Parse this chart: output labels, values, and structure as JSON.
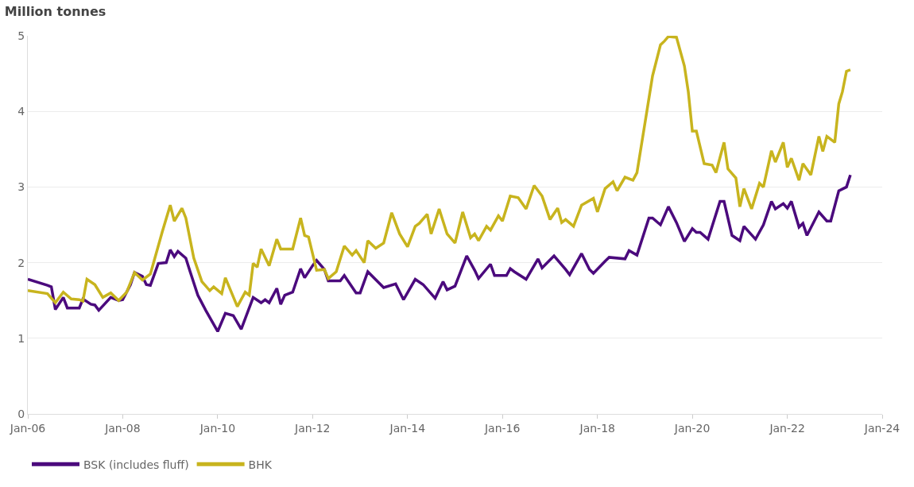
{
  "chart_data": {
    "type": "line",
    "title": "Million tonnes",
    "xlim": [
      "2006-01",
      "2024-01"
    ],
    "xticks": [
      {
        "value": "2006-01",
        "label": "Jan-06"
      },
      {
        "value": "2008-01",
        "label": "Jan-08"
      },
      {
        "value": "2010-01",
        "label": "Jan-10"
      },
      {
        "value": "2012-01",
        "label": "Jan-12"
      },
      {
        "value": "2014-01",
        "label": "Jan-14"
      },
      {
        "value": "2016-01",
        "label": "Jan-16"
      },
      {
        "value": "2018-01",
        "label": "Jan-18"
      },
      {
        "value": "2020-01",
        "label": "Jan-20"
      },
      {
        "value": "2022-01",
        "label": "Jan-22"
      },
      {
        "value": "2024-01",
        "label": "Jan-24"
      }
    ],
    "ylim": [
      0,
      5
    ],
    "yticks": [
      0,
      1,
      2,
      3,
      4,
      5
    ],
    "grid": "y",
    "legend": "bottom",
    "marker": "none",
    "line_style": "solid",
    "series": [
      {
        "name": "BSK (includes fluff)",
        "color": "#4b0a7d",
        "x": [
          "2006-01",
          "2006-06",
          "2006-07",
          "2006-08",
          "2006-10",
          "2006-11",
          "2007-02",
          "2007-03",
          "2007-05",
          "2007-06",
          "2007-07",
          "2007-10",
          "2007-12",
          "2008-01",
          "2008-03",
          "2008-04",
          "2008-06",
          "2008-07",
          "2008-08",
          "2008-10",
          "2008-12",
          "2009-01",
          "2009-02",
          "2009-03",
          "2009-05",
          "2009-06",
          "2009-08",
          "2009-10",
          "2010-01",
          "2010-03",
          "2010-05",
          "2010-07",
          "2010-10",
          "2010-12",
          "2011-01",
          "2011-02",
          "2011-04",
          "2011-05",
          "2011-06",
          "2011-08",
          "2011-10",
          "2011-11",
          "2012-01",
          "2012-02",
          "2012-04",
          "2012-05",
          "2012-08",
          "2012-09",
          "2012-12",
          "2013-01",
          "2013-03",
          "2013-07",
          "2013-10",
          "2013-12",
          "2014-03",
          "2014-05",
          "2014-08",
          "2014-10",
          "2014-11",
          "2015-01",
          "2015-04",
          "2015-06",
          "2015-07",
          "2015-10",
          "2015-11",
          "2016-02",
          "2016-03",
          "2016-04",
          "2016-07",
          "2016-10",
          "2016-11",
          "2017-02",
          "2017-05",
          "2017-06",
          "2017-09",
          "2017-11",
          "2017-12",
          "2018-03",
          "2018-04",
          "2018-08",
          "2018-09",
          "2018-11",
          "2019-02",
          "2019-03",
          "2019-05",
          "2019-07",
          "2019-09",
          "2019-11",
          "2020-01",
          "2020-02",
          "2020-03",
          "2020-05",
          "2020-08",
          "2020-09",
          "2020-11",
          "2021-01",
          "2021-02",
          "2021-05",
          "2021-07",
          "2021-09",
          "2021-10",
          "2021-12",
          "2022-01",
          "2022-02",
          "2022-04",
          "2022-05",
          "2022-06",
          "2022-09",
          "2022-11",
          "2022-12",
          "2023-02",
          "2023-04",
          "2023-05"
        ],
        "values": [
          1.78,
          1.7,
          1.68,
          1.38,
          1.54,
          1.4,
          1.4,
          1.52,
          1.45,
          1.44,
          1.37,
          1.54,
          1.5,
          1.51,
          1.71,
          1.87,
          1.82,
          1.71,
          1.7,
          1.99,
          2.0,
          2.17,
          2.08,
          2.15,
          2.06,
          1.89,
          1.57,
          1.37,
          1.09,
          1.33,
          1.3,
          1.12,
          1.54,
          1.47,
          1.51,
          1.47,
          1.66,
          1.45,
          1.57,
          1.61,
          1.92,
          1.8,
          1.96,
          2.03,
          1.91,
          1.76,
          1.76,
          1.83,
          1.6,
          1.6,
          1.88,
          1.67,
          1.72,
          1.51,
          1.78,
          1.71,
          1.53,
          1.75,
          1.64,
          1.69,
          2.09,
          1.9,
          1.79,
          1.98,
          1.83,
          1.83,
          1.92,
          1.88,
          1.78,
          2.05,
          1.93,
          2.09,
          1.91,
          1.84,
          2.12,
          1.91,
          1.86,
          2.02,
          2.07,
          2.05,
          2.16,
          2.1,
          2.59,
          2.59,
          2.5,
          2.74,
          2.53,
          2.28,
          2.45,
          2.4,
          2.4,
          2.31,
          2.81,
          2.81,
          2.36,
          2.29,
          2.48,
          2.31,
          2.5,
          2.81,
          2.71,
          2.78,
          2.72,
          2.81,
          2.47,
          2.52,
          2.36,
          2.67,
          2.55,
          2.55,
          2.95,
          3.0,
          3.16
        ]
      },
      {
        "name": "BHK",
        "color": "#c8b41e",
        "x": [
          "2006-01",
          "2006-06",
          "2006-08",
          "2006-10",
          "2006-12",
          "2007-02",
          "2007-03",
          "2007-04",
          "2007-06",
          "2007-08",
          "2007-10",
          "2007-12",
          "2008-02",
          "2008-04",
          "2008-06",
          "2008-08",
          "2008-11",
          "2009-01",
          "2009-02",
          "2009-04",
          "2009-05",
          "2009-07",
          "2009-09",
          "2009-11",
          "2009-12",
          "2010-02",
          "2010-03",
          "2010-06",
          "2010-08",
          "2010-09",
          "2010-10",
          "2010-11",
          "2010-12",
          "2011-02",
          "2011-04",
          "2011-05",
          "2011-08",
          "2011-10",
          "2011-11",
          "2011-12",
          "2012-02",
          "2012-04",
          "2012-05",
          "2012-07",
          "2012-09",
          "2012-11",
          "2012-12",
          "2013-02",
          "2013-03",
          "2013-05",
          "2013-07",
          "2013-09",
          "2013-11",
          "2014-01",
          "2014-03",
          "2014-04",
          "2014-06",
          "2014-07",
          "2014-09",
          "2014-11",
          "2015-01",
          "2015-03",
          "2015-05",
          "2015-06",
          "2015-07",
          "2015-09",
          "2015-10",
          "2015-12",
          "2016-01",
          "2016-03",
          "2016-05",
          "2016-07",
          "2016-09",
          "2016-11",
          "2017-01",
          "2017-03",
          "2017-04",
          "2017-05",
          "2017-07",
          "2017-09",
          "2017-12",
          "2018-01",
          "2018-03",
          "2018-05",
          "2018-06",
          "2018-08",
          "2018-10",
          "2018-11",
          "2019-01",
          "2019-03",
          "2019-05",
          "2019-06",
          "2019-07",
          "2019-09",
          "2019-11",
          "2019-12",
          "2020-01",
          "2020-02",
          "2020-04",
          "2020-06",
          "2020-07",
          "2020-09",
          "2020-10",
          "2020-12",
          "2021-01",
          "2021-02",
          "2021-04",
          "2021-06",
          "2021-07",
          "2021-09",
          "2021-10",
          "2021-12",
          "2022-01",
          "2022-02",
          "2022-04",
          "2022-05",
          "2022-07",
          "2022-09",
          "2022-10",
          "2022-11",
          "2023-01",
          "2023-02",
          "2023-03",
          "2023-04",
          "2023-05"
        ],
        "values": [
          1.63,
          1.59,
          1.47,
          1.61,
          1.52,
          1.51,
          1.49,
          1.78,
          1.71,
          1.54,
          1.6,
          1.5,
          1.61,
          1.87,
          1.77,
          1.85,
          2.41,
          2.76,
          2.55,
          2.72,
          2.59,
          2.06,
          1.75,
          1.63,
          1.68,
          1.59,
          1.8,
          1.42,
          1.61,
          1.57,
          1.99,
          1.94,
          2.18,
          1.96,
          2.31,
          2.18,
          2.18,
          2.59,
          2.36,
          2.34,
          1.9,
          1.91,
          1.79,
          1.88,
          2.22,
          2.1,
          2.16,
          2.0,
          2.29,
          2.19,
          2.26,
          2.66,
          2.38,
          2.21,
          2.48,
          2.52,
          2.64,
          2.38,
          2.71,
          2.38,
          2.26,
          2.67,
          2.33,
          2.38,
          2.29,
          2.48,
          2.43,
          2.62,
          2.55,
          2.88,
          2.86,
          2.71,
          3.02,
          2.88,
          2.57,
          2.72,
          2.53,
          2.57,
          2.48,
          2.76,
          2.85,
          2.67,
          2.98,
          3.07,
          2.95,
          3.13,
          3.09,
          3.19,
          3.84,
          4.47,
          4.88,
          4.93,
          4.99,
          4.98,
          4.6,
          4.26,
          3.74,
          3.74,
          3.31,
          3.29,
          3.19,
          3.59,
          3.24,
          3.12,
          2.74,
          2.98,
          2.71,
          3.05,
          3.0,
          3.48,
          3.33,
          3.59,
          3.26,
          3.38,
          3.09,
          3.31,
          3.16,
          3.67,
          3.47,
          3.67,
          3.59,
          4.1,
          4.26,
          4.53,
          4.55
        ]
      }
    ]
  }
}
